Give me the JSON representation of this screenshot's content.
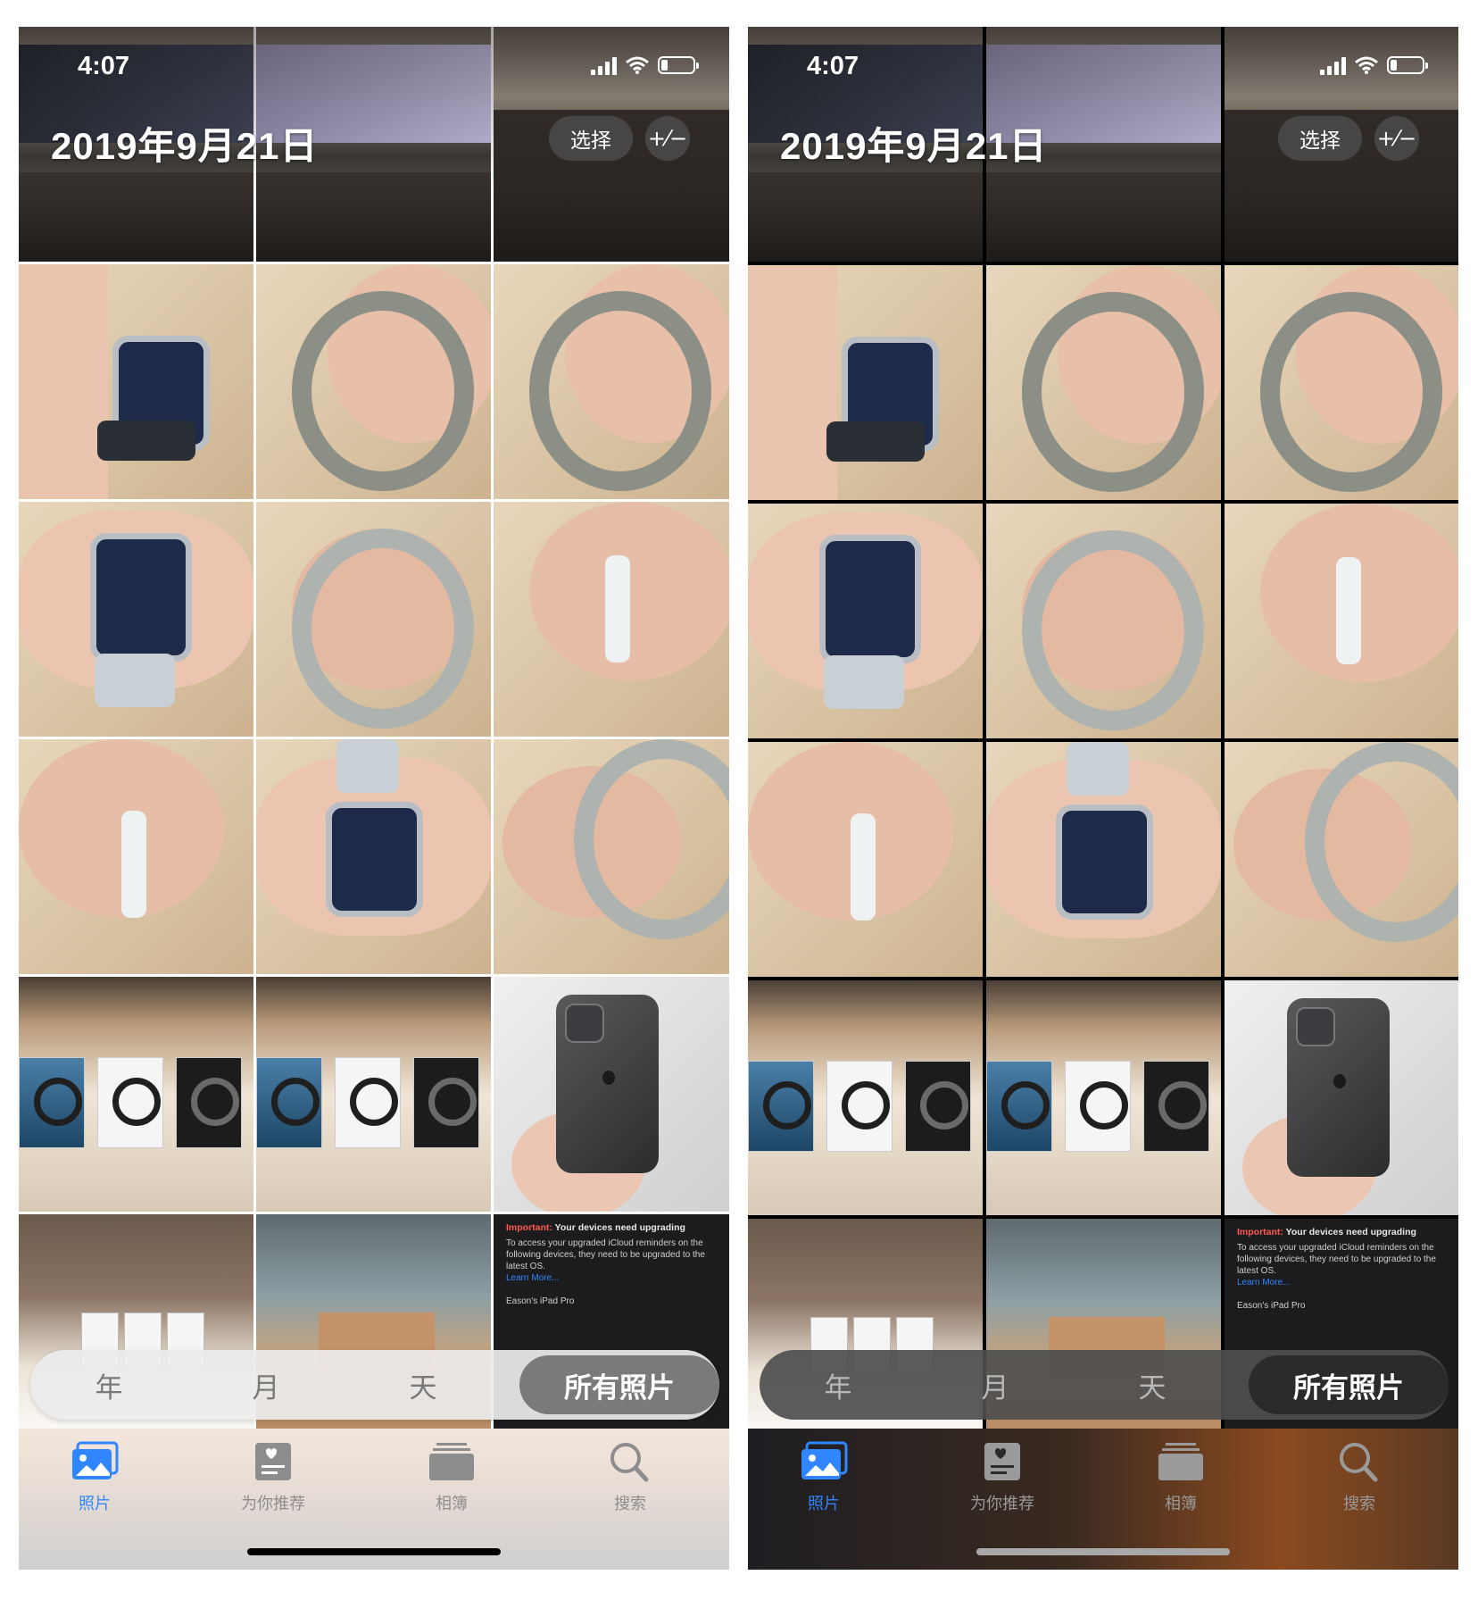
{
  "status_bar": {
    "time": "4:07",
    "battery_level": 0.2
  },
  "header": {
    "date": "2019年9月21日",
    "select_label": "选择",
    "plusminus_label": "+⁄−"
  },
  "segmented_control": {
    "items": [
      "年",
      "月",
      "天",
      "所有照片"
    ],
    "selected": "所有照片"
  },
  "screenshot_tile": {
    "important_label": "Important:",
    "title": "Your devices need upgrading",
    "body": "To access your upgraded iCloud reminders on the following devices, they need to be upgraded to the latest OS.",
    "link": "Learn More...",
    "device": "Eason's iPad Pro"
  },
  "tabbar": {
    "items": [
      {
        "label": "照片",
        "icon": "photos-icon",
        "active": true
      },
      {
        "label": "为你推荐",
        "icon": "for-you-icon",
        "active": false
      },
      {
        "label": "相簿",
        "icon": "albums-icon",
        "active": false
      },
      {
        "label": "搜索",
        "icon": "search-icon",
        "active": false
      }
    ]
  },
  "colors": {
    "accent": "#2f86ff",
    "important": "#ff5a4e"
  },
  "photo_grid": {
    "rows": 6,
    "columns": 3,
    "photos": [
      "store-event",
      "store-event-screen",
      "store-crowd",
      "watch-on-wrist",
      "watch-side-hand",
      "watch-side-hand",
      "watch-face",
      "watch-side-band",
      "watch-side-crown",
      "watch-side-crown",
      "watch-face",
      "watch-side-hand",
      "headphones-shelf",
      "headphones-shelf",
      "iphone-back",
      "shopping-bags",
      "paper-bags",
      "screenshot"
    ]
  }
}
